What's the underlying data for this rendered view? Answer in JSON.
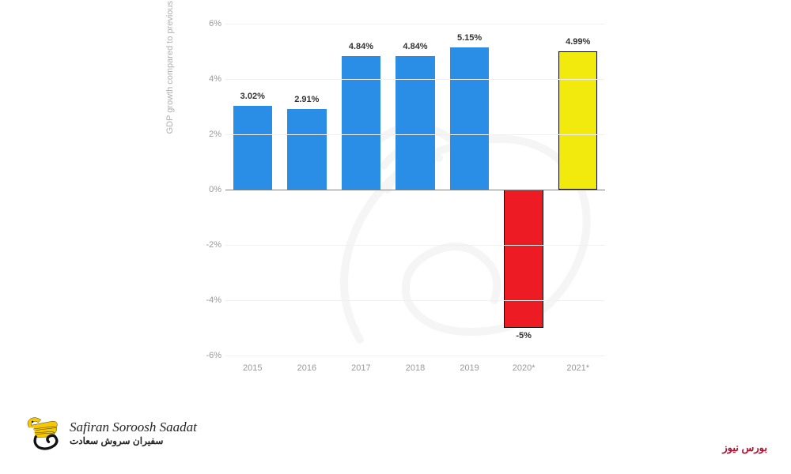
{
  "chart": {
    "type": "bar",
    "y_axis_label": "GDP growth compared to previous year",
    "ylim": [
      -6,
      6
    ],
    "yticks": [
      -6,
      -4,
      -2,
      0,
      2,
      4,
      6
    ],
    "ytick_labels": [
      "-6%",
      "-4%",
      "-2%",
      "0%",
      "2%",
      "4%",
      "6%"
    ],
    "categories": [
      "2015",
      "2016",
      "2017",
      "2018",
      "2019",
      "2020*",
      "2021*"
    ],
    "values": [
      3.02,
      2.91,
      4.84,
      4.84,
      5.15,
      -5,
      4.99
    ],
    "value_labels": [
      "3.02%",
      "2.91%",
      "4.84%",
      "4.84%",
      "5.15%",
      "-5%",
      "4.99%"
    ],
    "bar_colors": [
      "#2a8ee6",
      "#2a8ee6",
      "#2a8ee6",
      "#2a8ee6",
      "#2a8ee6",
      "#ed1c24",
      "#f2ea0d"
    ],
    "bar_borders": [
      "none",
      "none",
      "none",
      "none",
      "none",
      "#000000",
      "#000000"
    ],
    "zero_line_color": "#808080",
    "grid_color": "#f0f0f0",
    "tick_color": "#999999",
    "label_color": "#333333",
    "bar_width_ratio": 0.72
  },
  "logo": {
    "main_text": "Safiran Soroosh Saadat",
    "sub_text": "سفیران سروش سعادت",
    "wing_color": "#f5c800",
    "body_color": "#111111"
  },
  "news_label": "بورس نیوز"
}
